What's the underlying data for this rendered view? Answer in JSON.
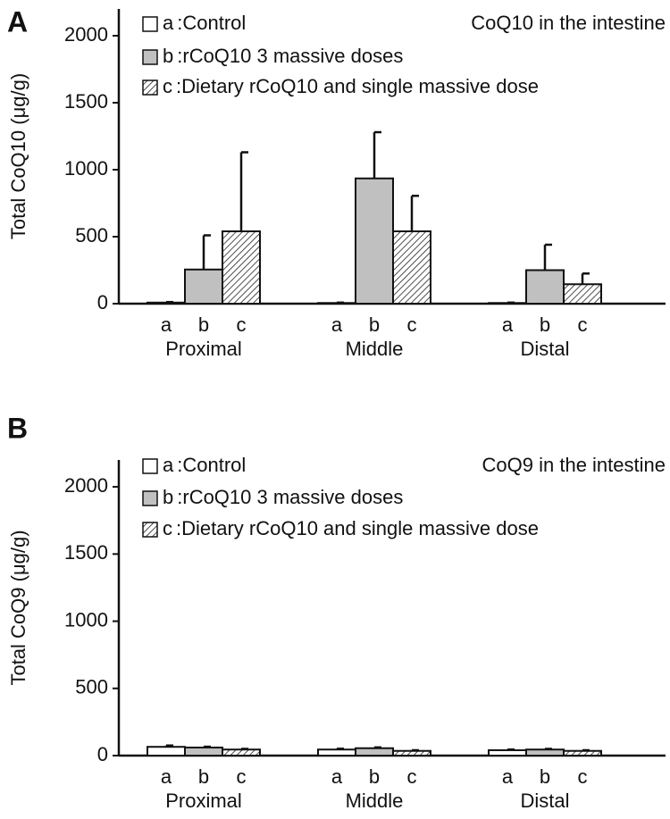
{
  "chart_data": [
    {
      "type": "bar",
      "panel": "A",
      "title": "CoQ10 in the intestine",
      "y_label": "Total CoQ10 (μg/g)",
      "categories": [
        "Proximal",
        "Middle",
        "Distal"
      ],
      "series": [
        {
          "label": "a",
          "name": ":Control",
          "color": "#ffffff",
          "hatch": false,
          "values": [
            8,
            5,
            5
          ],
          "errors": [
            4,
            3,
            3
          ]
        },
        {
          "label": "b",
          "name": ":rCoQ10 3 massive doses",
          "color": "#c0c0c0",
          "hatch": false,
          "values": [
            255,
            935,
            250
          ],
          "errors": [
            255,
            345,
            190
          ]
        },
        {
          "label": "c",
          "name": ":Dietary rCoQ10 and single massive dose",
          "color": "#ffffff",
          "hatch": true,
          "values": [
            540,
            540,
            145
          ],
          "errors": [
            590,
            265,
            80
          ]
        }
      ],
      "ylim": [
        0,
        2200
      ],
      "yticks": [
        0,
        500,
        1000,
        1500,
        2000
      ]
    },
    {
      "type": "bar",
      "panel": "B",
      "title": "CoQ9 in the intestine",
      "y_label": "Total CoQ9  (μg/g)",
      "categories": [
        "Proximal",
        "Middle",
        "Distal"
      ],
      "series": [
        {
          "label": "a",
          "name": ":Control",
          "color": "#ffffff",
          "hatch": false,
          "values": [
            65,
            45,
            40
          ],
          "errors": [
            10,
            6,
            5
          ]
        },
        {
          "label": "b",
          "name": ":rCoQ10 3 massive doses",
          "color": "#c0c0c0",
          "hatch": false,
          "values": [
            60,
            55,
            45
          ],
          "errors": [
            6,
            6,
            5
          ]
        },
        {
          "label": "c",
          "name": ":Dietary rCoQ10 and single massive dose",
          "color": "#ffffff",
          "hatch": true,
          "values": [
            45,
            35,
            35
          ],
          "errors": [
            5,
            5,
            5
          ]
        }
      ],
      "ylim": [
        0,
        2200
      ],
      "yticks": [
        0,
        500,
        1000,
        1500,
        2000
      ]
    }
  ]
}
